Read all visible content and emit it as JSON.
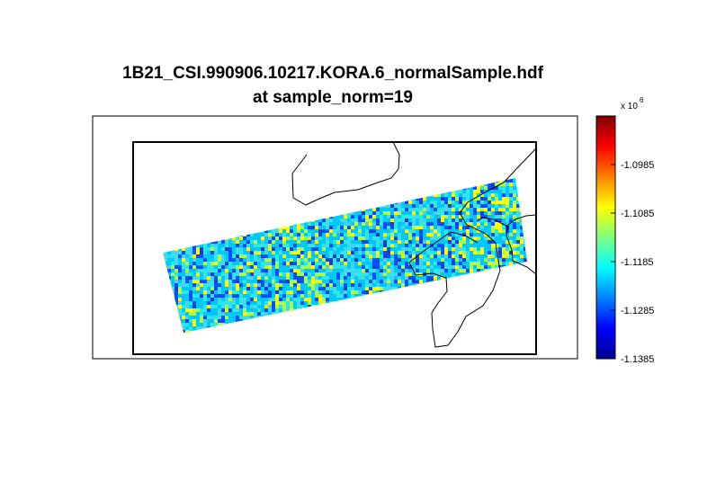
{
  "chart_data": {
    "type": "heatmap",
    "title": "1B21_CSI.990906.10217.KORA.6_normalSample.hdf",
    "subtitle": "at sample_norm=19",
    "colorbar": {
      "exponent_label": "x 10",
      "exponent_power": "6",
      "range": [
        -1.1385,
        -1.0885
      ],
      "ticks": [
        -1.0985,
        -1.1085,
        -1.1185,
        -1.1285,
        -1.1385
      ],
      "tick_labels": [
        "-1.0985",
        "-1.1085",
        "-1.1185",
        "-1.1285",
        "-1.1385"
      ],
      "colormap": "jet"
    },
    "swath": {
      "description_value_range": [
        -1.1385,
        -1.0985
      ],
      "dominant_value": -1.1185
    }
  }
}
